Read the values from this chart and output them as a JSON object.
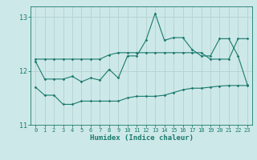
{
  "x": [
    0,
    1,
    2,
    3,
    4,
    5,
    6,
    7,
    8,
    9,
    10,
    11,
    12,
    13,
    14,
    15,
    16,
    17,
    18,
    19,
    20,
    21,
    22,
    23
  ],
  "line_top": [
    12.22,
    12.22,
    12.22,
    12.22,
    12.22,
    12.22,
    12.22,
    12.22,
    12.3,
    12.34,
    12.34,
    12.34,
    12.34,
    12.34,
    12.34,
    12.34,
    12.34,
    12.34,
    12.34,
    12.22,
    12.22,
    12.22,
    12.6,
    12.6
  ],
  "line_mid": [
    12.18,
    11.85,
    11.85,
    11.85,
    11.9,
    11.8,
    11.87,
    11.83,
    12.03,
    11.87,
    12.28,
    12.28,
    12.57,
    13.07,
    12.57,
    12.62,
    12.62,
    12.4,
    12.28,
    12.28,
    12.6,
    12.6,
    12.28,
    11.75
  ],
  "line_bot": [
    11.7,
    11.55,
    11.55,
    11.38,
    11.38,
    11.44,
    11.44,
    11.44,
    11.44,
    11.44,
    11.5,
    11.53,
    11.53,
    11.53,
    11.55,
    11.6,
    11.65,
    11.68,
    11.68,
    11.7,
    11.72,
    11.73,
    11.73,
    11.73
  ],
  "color": "#1a7a6e",
  "bg_color": "#cde8e8",
  "grid_color": "#b8d4d4",
  "xlabel": "Humidex (Indice chaleur)",
  "ylim": [
    11.0,
    13.2
  ],
  "yticks": [
    11,
    12,
    13
  ],
  "xticks": [
    0,
    1,
    2,
    3,
    4,
    5,
    6,
    7,
    8,
    9,
    10,
    11,
    12,
    13,
    14,
    15,
    16,
    17,
    18,
    19,
    20,
    21,
    22,
    23
  ],
  "marker": "D",
  "marker_size": 1.8,
  "line_width": 0.8,
  "tick_fontsize": 5.0,
  "xlabel_fontsize": 6.5
}
